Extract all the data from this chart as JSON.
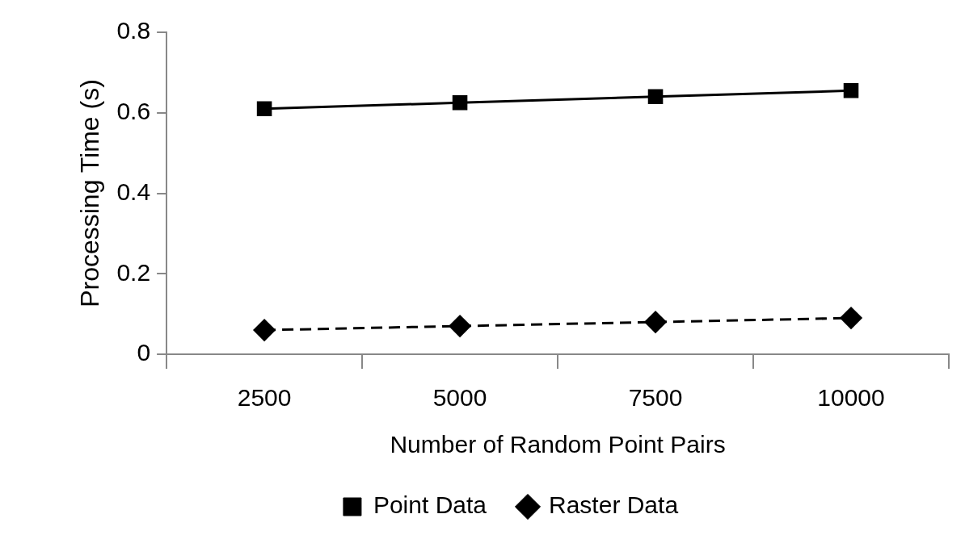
{
  "chart_data": {
    "type": "line",
    "xlabel": "Number of Random Point Pairs",
    "ylabel": "Processing Time (s)",
    "categories": [
      "2500",
      "5000",
      "7500",
      "10000"
    ],
    "series": [
      {
        "name": "Point Data",
        "color": "#000000",
        "values": [
          0.61,
          0.625,
          0.64,
          0.655
        ],
        "marker": "square",
        "line_style": "solid"
      },
      {
        "name": "Raster Data",
        "color": "#000000",
        "values": [
          0.06,
          0.07,
          0.08,
          0.09
        ],
        "marker": "diamond",
        "line_style": "dashed"
      }
    ],
    "ylim": [
      0,
      0.8
    ],
    "yticks": [
      0,
      0.2,
      0.4,
      0.6,
      0.8
    ],
    "grid": false,
    "legend": "bottom"
  }
}
